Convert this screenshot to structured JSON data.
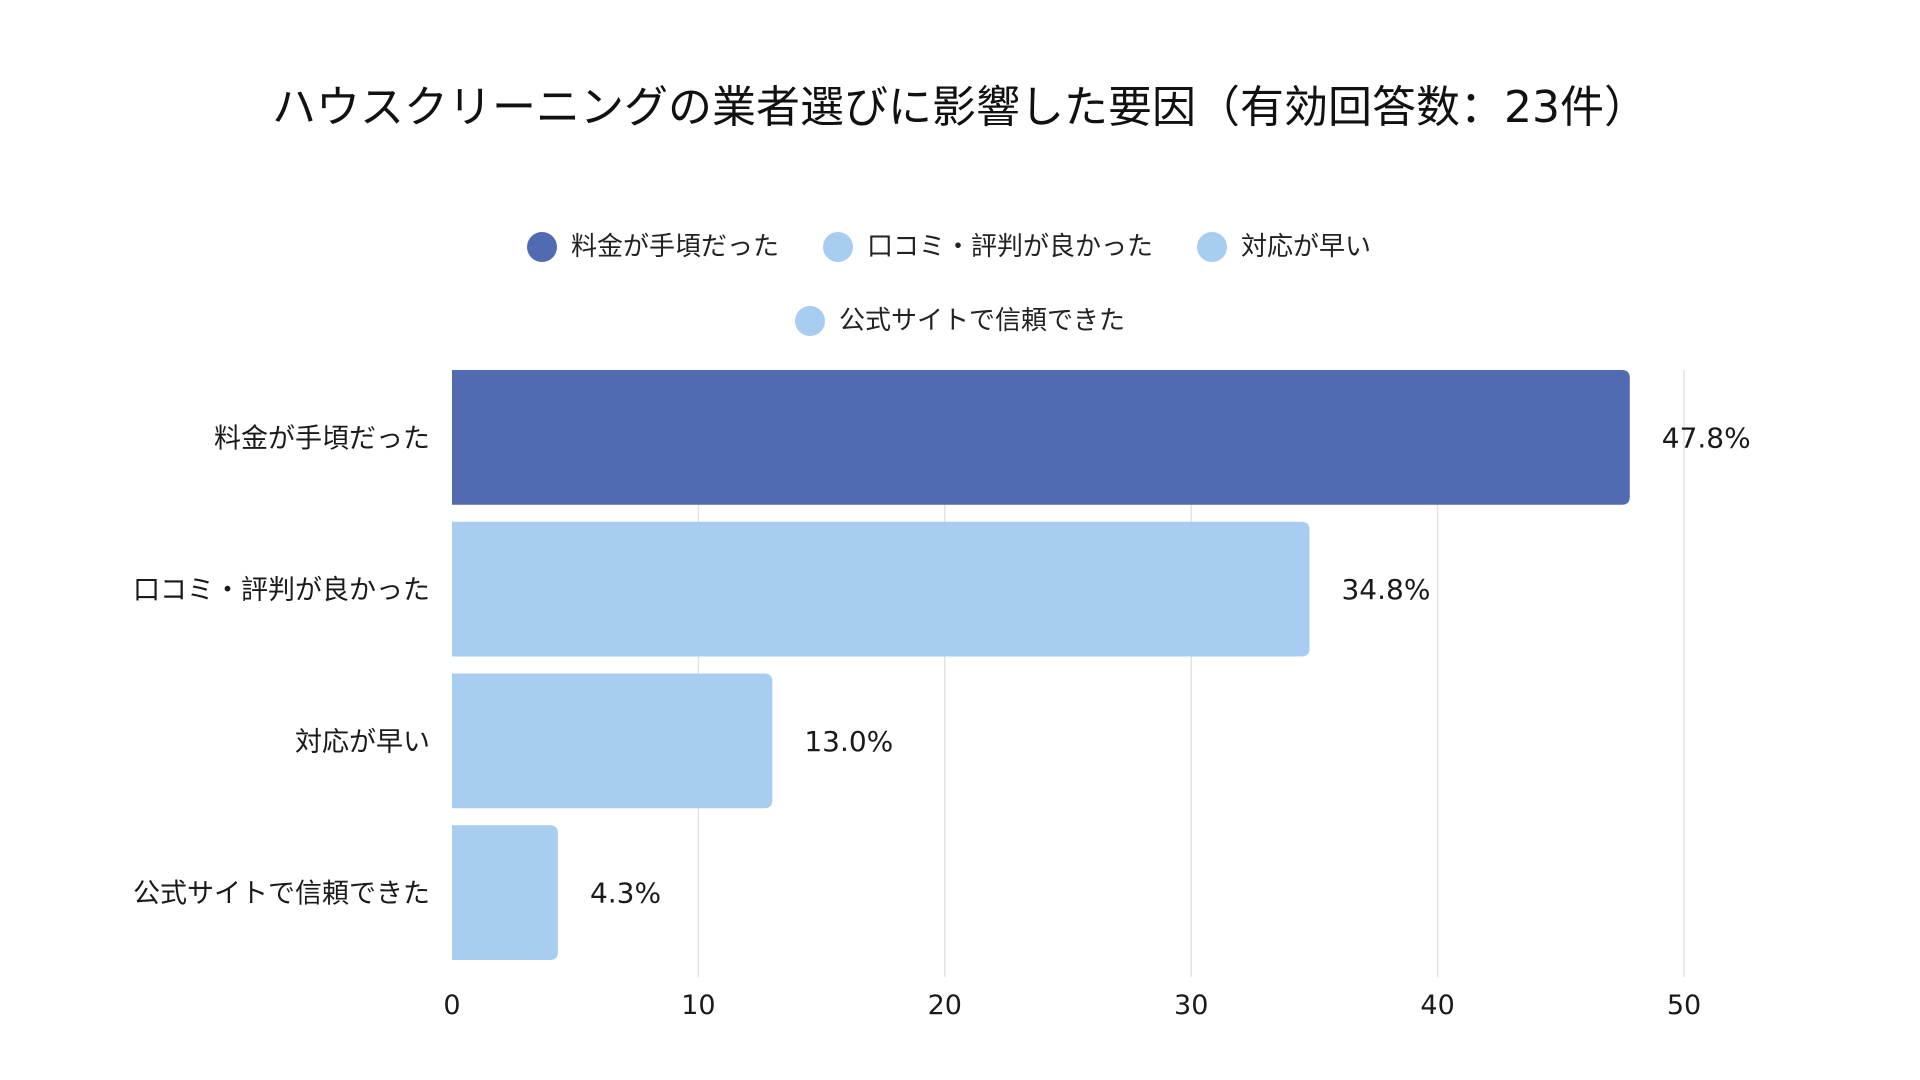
{
  "title": "ハウスクリーニングの業者選びに影響した要因（有効回答数：23件）",
  "legend": [
    {
      "label": "料金が手頃だった",
      "color": "#516BB2"
    },
    {
      "label": "口コミ・評判が良かった",
      "color": "#A7CDF0"
    },
    {
      "label": "対応が早い",
      "color": "#A7CDF0"
    },
    {
      "label": "公式サイトで信頼できた",
      "color": "#A7CDF0"
    }
  ],
  "chart_data": {
    "type": "bar",
    "orientation": "horizontal",
    "title": "ハウスクリーニングの業者選びに影響した要因（有効回答数：23件）",
    "categories": [
      "料金が手頃だった",
      "口コミ・評判が良かった",
      "対応が早い",
      "公式サイトで信頼できた"
    ],
    "values": [
      47.8,
      34.8,
      13.0,
      4.3
    ],
    "value_labels": [
      "47.8%",
      "34.8%",
      "13.0%",
      "4.3%"
    ],
    "colors": [
      "#516BB2",
      "#A7CDF0",
      "#A7CDF0",
      "#A7CDF0"
    ],
    "xlabel": "",
    "ylabel": "",
    "xlim": [
      0,
      50
    ],
    "xticks": [
      0,
      10,
      20,
      30,
      40,
      50
    ],
    "xtick_labels": [
      "0",
      "10",
      "20",
      "30",
      "40",
      "50"
    ],
    "grid": true,
    "legend_position": "top"
  }
}
